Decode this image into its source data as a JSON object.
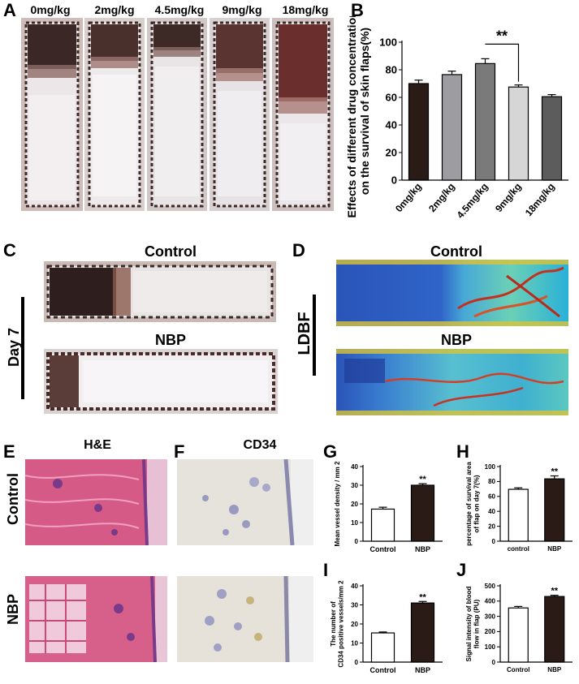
{
  "panels": {
    "A": "A",
    "B": "B",
    "C": "C",
    "D": "D",
    "E": "E",
    "F": "F",
    "G": "G",
    "H": "H",
    "I": "I",
    "J": "J"
  },
  "panel_a": {
    "concentrations": [
      "0mg/kg",
      "2mg/kg",
      "4.5mg/kg",
      "9mg/kg",
      "18mg/kg"
    ]
  },
  "panel_c": {
    "top_label": "Control",
    "bottom_label": "NBP",
    "side_label": "Day 7"
  },
  "panel_d": {
    "top_label": "Control",
    "bottom_label": "NBP",
    "side_label": "LDBF"
  },
  "panel_e": {
    "title": "H&E"
  },
  "panel_f": {
    "title": "CD34"
  },
  "row_labels": {
    "top": "Control",
    "bottom": "NBP"
  },
  "colors": {
    "bar_0": "#2a1b17",
    "bar_2": "#9d9ca0",
    "bar_45": "#7a7a7a",
    "bar_9": "#d6d6d6",
    "bar_18": "#5c5c5c",
    "control_bar": "#ffffff",
    "nbp_bar": "#2a1b17"
  },
  "chart_data": [
    {
      "id": "B",
      "type": "bar",
      "ylabel": "Effects of different drug concentrations on the survival of skin flaps(%)",
      "ylabel_lines": [
        "Effects of different drug concentrations",
        "on the survival of skin flaps(%)"
      ],
      "categories": [
        "0mg/kg",
        "2mg/kg",
        "4.5mg/kg",
        "9mg/kg",
        "18mg/kg"
      ],
      "values": [
        70,
        76.5,
        84.5,
        67.5,
        60.5
      ],
      "errors": [
        2.5,
        2.5,
        3.5,
        1.5,
        1.5
      ],
      "ylim": [
        0,
        100
      ],
      "yticks": [
        0,
        20,
        40,
        60,
        80,
        100
      ],
      "annotation": "**"
    },
    {
      "id": "G",
      "type": "bar",
      "ylabel": "Mean vessel density / mm 2",
      "ylabel_lines": [
        "Mean vessel density / mm 2"
      ],
      "categories": [
        "Control",
        "NBP"
      ],
      "values": [
        17.2,
        30
      ],
      "errors": [
        1,
        0.8
      ],
      "ylim": [
        0,
        40
      ],
      "yticks": [
        0,
        10,
        20,
        30,
        40
      ],
      "annotation": "**"
    },
    {
      "id": "H",
      "type": "bar",
      "ylabel": "percentage of survival area of flap on day 7(%)",
      "ylabel_lines": [
        "percentage of survival area",
        "of flap on day 7(%)"
      ],
      "categories": [
        "control",
        "NBP"
      ],
      "values": [
        69.5,
        83.5
      ],
      "errors": [
        2,
        4
      ],
      "ylim": [
        0,
        100
      ],
      "yticks": [
        0,
        20,
        40,
        60,
        80,
        100
      ],
      "annotation": "**"
    },
    {
      "id": "I",
      "type": "bar",
      "ylabel": "The number of CD34 positive vessels/mm 2",
      "ylabel_lines": [
        "The number of",
        "CD34 positive vessels/mm 2"
      ],
      "categories": [
        "Control",
        "NBP"
      ],
      "values": [
        15.3,
        31
      ],
      "errors": [
        0.5,
        0.8
      ],
      "ylim": [
        0,
        40
      ],
      "yticks": [
        0,
        10,
        20,
        30,
        40
      ],
      "annotation": "**"
    },
    {
      "id": "J",
      "type": "bar",
      "ylabel": "Signal intensity of blood flow in flap (PU)",
      "ylabel_lines": [
        "Signal intensity of blood",
        "flow in flap (PU)"
      ],
      "categories": [
        "Control",
        "NBP"
      ],
      "values": [
        355,
        430
      ],
      "errors": [
        10,
        8
      ],
      "ylim": [
        0,
        500
      ],
      "yticks": [
        0,
        100,
        200,
        300,
        400,
        500
      ],
      "annotation": "**"
    }
  ]
}
